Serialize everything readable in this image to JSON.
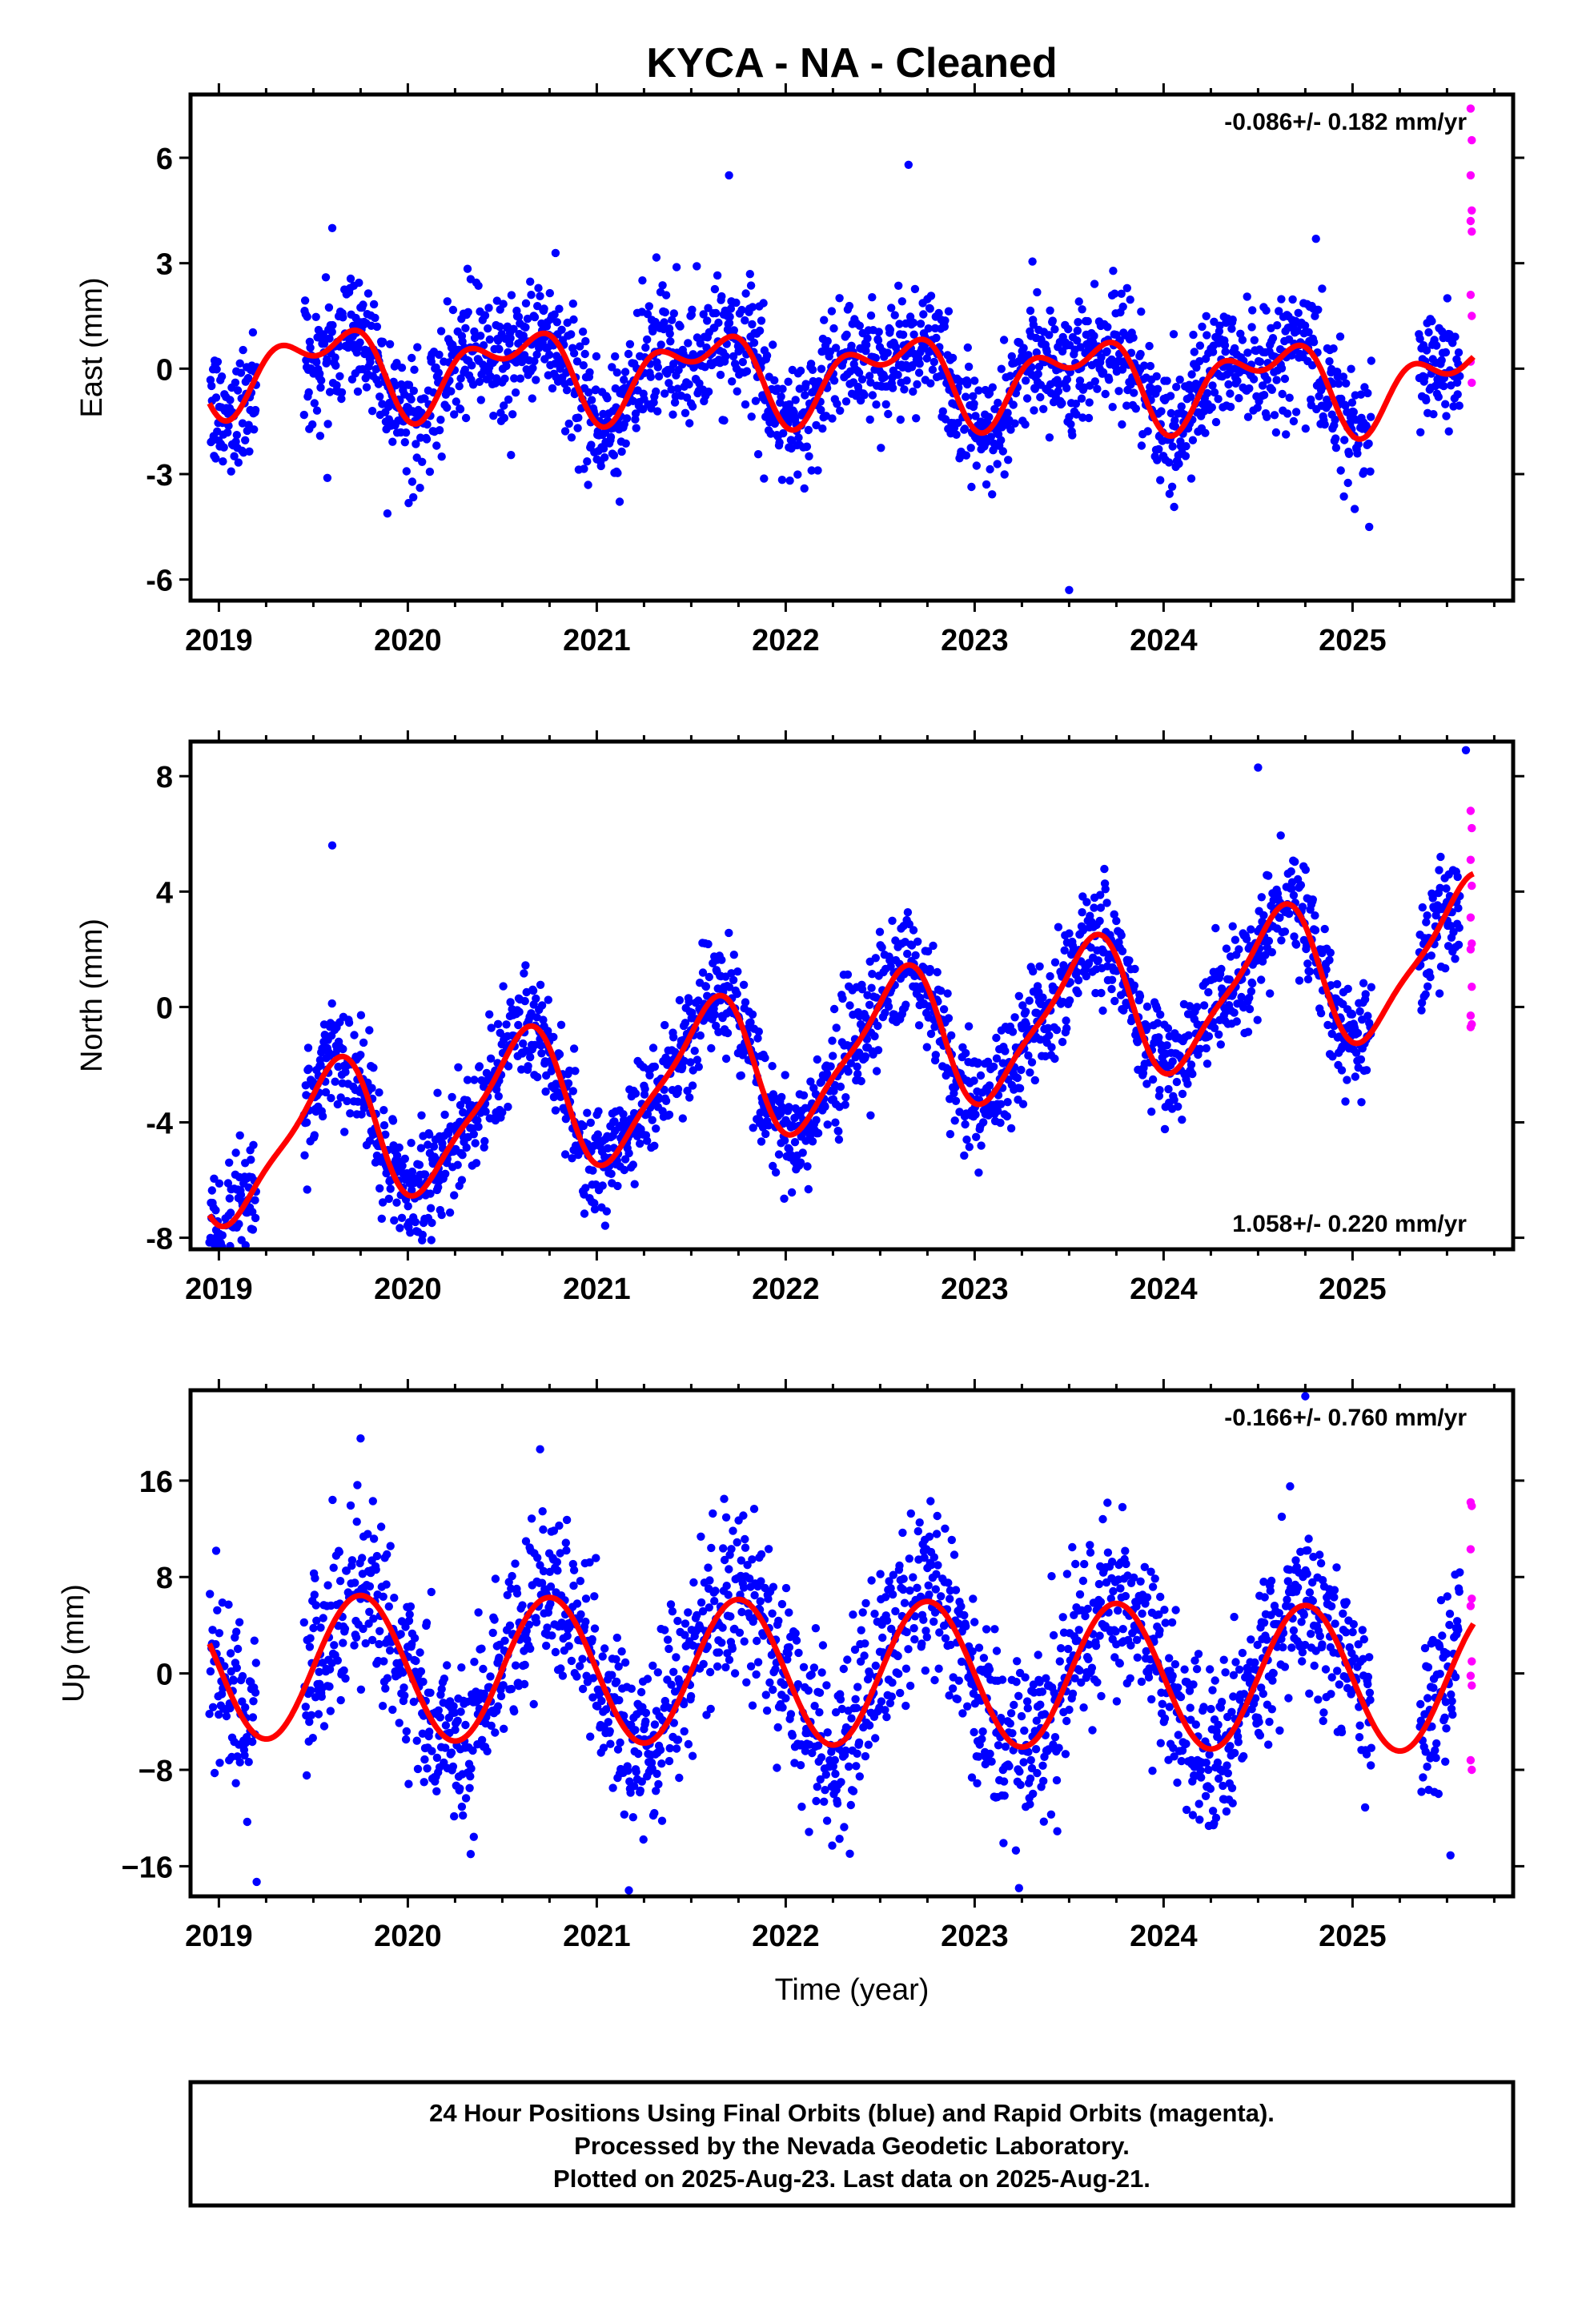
{
  "title": "KYCA  - NA - Cleaned",
  "colors": {
    "final": "#0000ff",
    "rapid": "#ff00ff",
    "model": "#ff0000",
    "frame": "#000000"
  },
  "footer": {
    "line1": "24 Hour Positions Using Final Orbits (blue) and Rapid Orbits (magenta).",
    "line2": "Processed by the Nevada Geodetic Laboratory.",
    "line3": "Plotted on 2025-Aug-23. Last data on 2025-Aug-21."
  },
  "chart_data": [
    {
      "type": "scatter",
      "id": "east",
      "ylabel": "East (mm)",
      "xlabel": "",
      "rate": "-0.086+/- 0.182 mm/yr",
      "rate_position": "top-right",
      "xlim": [
        2018.85,
        2025.85
      ],
      "ylim": [
        -6.6,
        7.8
      ],
      "xticks": [
        2019,
        2020,
        2021,
        2022,
        2023,
        2024,
        2025
      ],
      "yticks": [
        -6,
        -3,
        0,
        3,
        6
      ],
      "ytick_labels": [
        "-6",
        "-3",
        "0",
        "3",
        "6"
      ],
      "first_data": 2018.95,
      "rapid_start": 2025.57,
      "last_data": 2025.64,
      "gaps": [
        [
          2019.2,
          2019.45
        ],
        [
          2025.1,
          2025.35
        ]
      ],
      "model": {
        "offset": -0.15,
        "trend_mm_per_yr": -0.086,
        "annual_cos": -0.9,
        "annual_sin": -0.4,
        "semiannual_cos": -0.6,
        "semiannual_sin": -0.2,
        "noise_sd": 0.9
      },
      "extremes": [
        [
          2023.5,
          -6.3
        ],
        [
          2021.7,
          5.5
        ],
        [
          2022.65,
          5.8
        ],
        [
          2019.6,
          4.0
        ]
      ],
      "rapid_values": [
        7.4,
        6.5,
        5.5,
        4.5,
        4.2,
        3.9,
        2.1,
        1.5,
        0.2,
        -0.4
      ]
    },
    {
      "type": "scatter",
      "id": "north",
      "ylabel": "North (mm)",
      "xlabel": "",
      "rate": "1.058+/- 0.220 mm/yr",
      "rate_position": "bottom-right",
      "xlim": [
        2018.85,
        2025.85
      ],
      "ylim": [
        -8.4,
        9.2
      ],
      "xticks": [
        2019,
        2020,
        2021,
        2022,
        2023,
        2024,
        2025
      ],
      "yticks": [
        -8,
        -4,
        0,
        4,
        8
      ],
      "ytick_labels": [
        "-8",
        "-4",
        "0",
        "4",
        "8"
      ],
      "first_data": 2018.95,
      "rapid_start": 2025.57,
      "last_data": 2025.64,
      "gaps": [
        [
          2019.2,
          2019.45
        ],
        [
          2025.1,
          2025.35
        ]
      ],
      "model": {
        "offset": -1.9,
        "trend_mm_per_yr": 1.058,
        "annual_cos": -2.0,
        "annual_sin": -1.3,
        "semiannual_cos": -0.5,
        "semiannual_sin": 0.3,
        "noise_sd": 1.0
      },
      "extremes": [
        [
          2019.0,
          -8.1
        ],
        [
          2019.6,
          5.6
        ],
        [
          2025.6,
          8.9
        ],
        [
          2024.5,
          8.3
        ]
      ],
      "rapid_values": [
        6.8,
        6.2,
        5.1,
        4.2,
        3.1,
        2.2,
        2.0,
        0.7,
        -0.3,
        -0.6,
        -0.7
      ]
    },
    {
      "type": "scatter",
      "id": "up",
      "ylabel": "Up (mm)",
      "xlabel": "Time (year)",
      "rate": "-0.166+/- 0.760 mm/yr",
      "rate_position": "top-right",
      "xlim": [
        2018.85,
        2025.85
      ],
      "ylim": [
        -18.5,
        23.5
      ],
      "xticks": [
        2019,
        2020,
        2021,
        2022,
        2023,
        2024,
        2025
      ],
      "yticks": [
        -16,
        -8,
        0,
        8,
        16
      ],
      "ytick_labels": [
        "−16",
        "−8",
        "0",
        "8",
        "16"
      ],
      "first_data": 2018.95,
      "rapid_start": 2025.57,
      "last_data": 2025.64,
      "gaps": [
        [
          2019.2,
          2019.45
        ],
        [
          2025.1,
          2025.35
        ]
      ],
      "model": {
        "offset": 0.1,
        "trend_mm_per_yr": -0.166,
        "annual_cos": 0.0,
        "annual_sin": -6.0,
        "semiannual_cos": 0.0,
        "semiannual_sin": 0.0,
        "noise_sd": 3.6
      },
      "extremes": [
        [
          2019.75,
          19.5
        ],
        [
          2019.2,
          -17.3
        ],
        [
          2021.17,
          -18.0
        ],
        [
          2024.75,
          23.0
        ],
        [
          2020.7,
          18.6
        ]
      ],
      "rapid_values": [
        14.2,
        13.9,
        10.3,
        6.2,
        5.6,
        1.0,
        -0.2,
        -1.0,
        -7.2,
        -8.0
      ]
    }
  ]
}
